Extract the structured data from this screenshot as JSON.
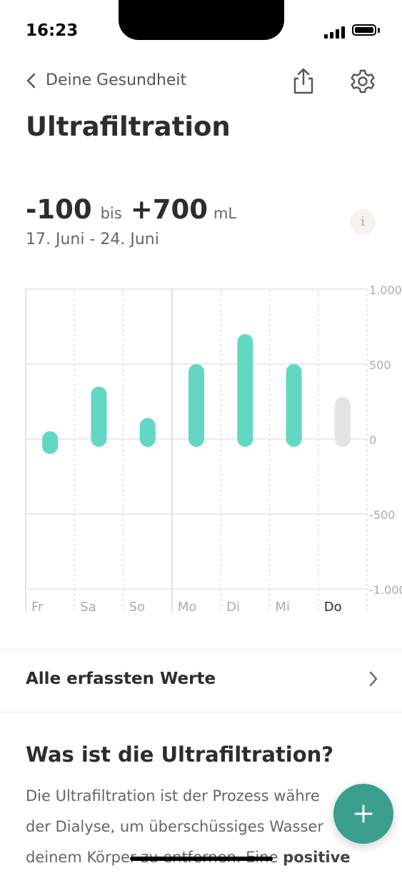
{
  "status": {
    "time": "16:23"
  },
  "nav": {
    "back_label": "Deine Gesundheit"
  },
  "page": {
    "title": "Ultrafiltration"
  },
  "summary": {
    "min_value": "-100",
    "connector": "bis",
    "max_value": "+700",
    "unit": "mL",
    "date_range": "17. Juni - 24. Juni",
    "info_label": "i"
  },
  "chart_data": {
    "type": "bar",
    "categories": [
      "Fr",
      "Sa",
      "So",
      "Mo",
      "Di",
      "Mi",
      "Do"
    ],
    "values": [
      -100,
      350,
      140,
      500,
      700,
      500,
      280
    ],
    "highlight_category": "Do",
    "ylim": [
      -1000,
      1000
    ],
    "yticks": [
      1000,
      500,
      0,
      -500,
      -1000
    ],
    "ytick_labels": [
      "1.000",
      "500",
      "0",
      "-500",
      "-1.000"
    ],
    "title": "",
    "xlabel": "",
    "ylabel": "",
    "colors": {
      "bar": "#62d8c3",
      "bar_current": "#e3e3e3",
      "grid": "#dddddd"
    },
    "grid": true
  },
  "list": {
    "all_values_label": "Alle erfassten Werte"
  },
  "info_section": {
    "title": "Was ist die Ultrafiltration?",
    "line1": "Die Ultrafiltration ist der Prozess währe",
    "line2": "der Dialyse, um überschüssiges Wasser",
    "line3_plain": "deinem Körper zu entfernen. Eine ",
    "line3_bold": "positive"
  },
  "fab": {
    "label": "+",
    "color": "#3a9f8c"
  }
}
